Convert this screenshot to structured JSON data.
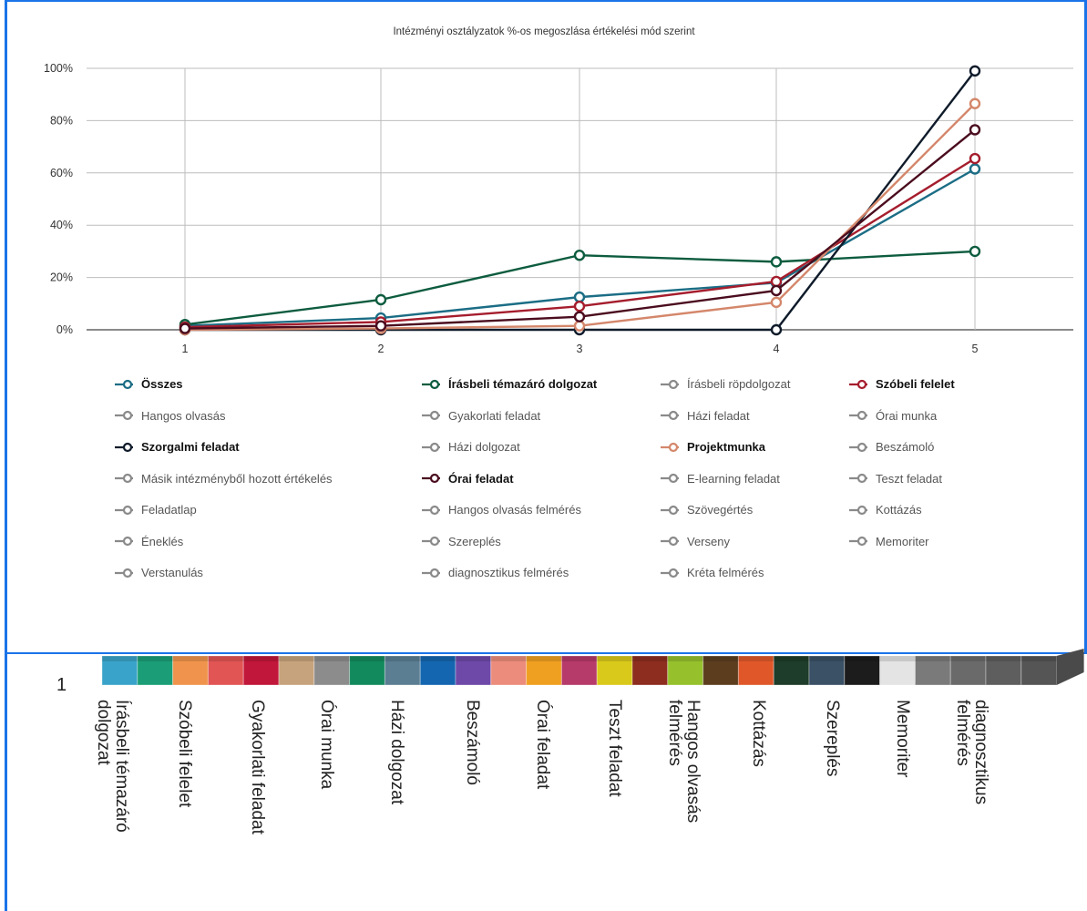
{
  "chart_data": {
    "type": "line",
    "title": "Intézményi osztályzatok %-os megoszlása értékelési mód szerint",
    "x": [
      "1",
      "2",
      "3",
      "4",
      "5"
    ],
    "y_ticks": [
      "0%",
      "20%",
      "40%",
      "60%",
      "80%",
      "100%"
    ],
    "ylim": [
      0,
      100
    ],
    "grid": true,
    "legend_position": "bottom",
    "series": [
      {
        "name": "Összes",
        "color": "#1b6d85",
        "values": [
          1.5,
          4.5,
          12.5,
          18,
          61.5
        ]
      },
      {
        "name": "Írásbeli témazáró dolgozat",
        "color": "#0d5c3f",
        "values": [
          2,
          11.5,
          28.5,
          26,
          30
        ]
      },
      {
        "name": "Szóbeli felelet",
        "color": "#a51d2d",
        "values": [
          1,
          3,
          9,
          18.5,
          65.5
        ]
      },
      {
        "name": "Szorgalmi feladat",
        "color": "#0f1b2a",
        "values": [
          0,
          0,
          0,
          0,
          99
        ]
      },
      {
        "name": "Projektmunka",
        "color": "#d4876b",
        "values": [
          0,
          0.5,
          1.5,
          10.5,
          86.5
        ]
      },
      {
        "name": "Órai feladat",
        "color": "#4a0c1e",
        "values": [
          0.5,
          1.5,
          5,
          15,
          76.5
        ]
      }
    ],
    "legend": [
      {
        "label": "Összes",
        "color": "#1b6d85",
        "bold": true
      },
      {
        "label": "Írásbeli témazáró dolgozat",
        "color": "#0d5c3f",
        "bold": true
      },
      {
        "label": "Írásbeli röpdolgozat",
        "color": "#8a8a8a",
        "bold": false
      },
      {
        "label": "Szóbeli felelet",
        "color": "#a51d2d",
        "bold": true
      },
      {
        "label": "Hangos olvasás",
        "color": "#8a8a8a",
        "bold": false
      },
      {
        "label": "Gyakorlati feladat",
        "color": "#8a8a8a",
        "bold": false
      },
      {
        "label": "Házi feladat",
        "color": "#8a8a8a",
        "bold": false
      },
      {
        "label": "Órai munka",
        "color": "#8a8a8a",
        "bold": false
      },
      {
        "label": "Szorgalmi feladat",
        "color": "#0f1b2a",
        "bold": true
      },
      {
        "label": "Házi dolgozat",
        "color": "#8a8a8a",
        "bold": false
      },
      {
        "label": "Projektmunka",
        "color": "#d4876b",
        "bold": true
      },
      {
        "label": "Beszámoló",
        "color": "#8a8a8a",
        "bold": false
      },
      {
        "label": "Másik intézményből hozott értékelés",
        "color": "#8a8a8a",
        "bold": false
      },
      {
        "label": "Órai feladat",
        "color": "#4a0c1e",
        "bold": true
      },
      {
        "label": "E-learning feladat",
        "color": "#8a8a8a",
        "bold": false
      },
      {
        "label": "Teszt feladat",
        "color": "#8a8a8a",
        "bold": false
      },
      {
        "label": "Feladatlap",
        "color": "#8a8a8a",
        "bold": false
      },
      {
        "label": "Hangos olvasás felmérés",
        "color": "#8a8a8a",
        "bold": false
      },
      {
        "label": "Szövegértés",
        "color": "#8a8a8a",
        "bold": false
      },
      {
        "label": "Kottázás",
        "color": "#8a8a8a",
        "bold": false
      },
      {
        "label": "Éneklés",
        "color": "#8a8a8a",
        "bold": false
      },
      {
        "label": "Szereplés",
        "color": "#8a8a8a",
        "bold": false
      },
      {
        "label": "Verseny",
        "color": "#8a8a8a",
        "bold": false
      },
      {
        "label": "Memoriter",
        "color": "#8a8a8a",
        "bold": false
      },
      {
        "label": "Verstanulás",
        "color": "#8a8a8a",
        "bold": false
      },
      {
        "label": "diagnosztikus felmérés",
        "color": "#8a8a8a",
        "bold": false
      },
      {
        "label": "Kréta felmérés",
        "color": "#8a8a8a",
        "bold": false
      }
    ]
  },
  "lower_chart": {
    "axis_value": "1",
    "colors": [
      "#3aa3c9",
      "#1b9e77",
      "#f0944d",
      "#e25555",
      "#c1173a",
      "#c7a37d",
      "#8c8c8c",
      "#138a5e",
      "#5b7e92",
      "#1566b0",
      "#6e49a8",
      "#ec8c7c",
      "#f0a020",
      "#b63a6a",
      "#d9c91a",
      "#8c2d1f",
      "#96c12c",
      "#5c3e1f",
      "#e0582a",
      "#1e3d2a",
      "#3b5166",
      "#1c1c1c",
      "#e4e4e4",
      "#7a7a7a",
      "#6a6a6a",
      "#5e5e5e",
      "#555555"
    ],
    "labels": [
      "Írásbeli témazáró\ndolgozat",
      "Szóbeli felelet",
      "Gyakorlati feladat",
      "Órai munka",
      "Házi dolgozat",
      "Beszámoló",
      "Órai feladat",
      "Teszt feladat",
      "Hangos olvasás\nfelmérés",
      "Kottázás",
      "Szereplés",
      "Memoriter",
      "diagnosztikus\nfelmérés"
    ]
  }
}
